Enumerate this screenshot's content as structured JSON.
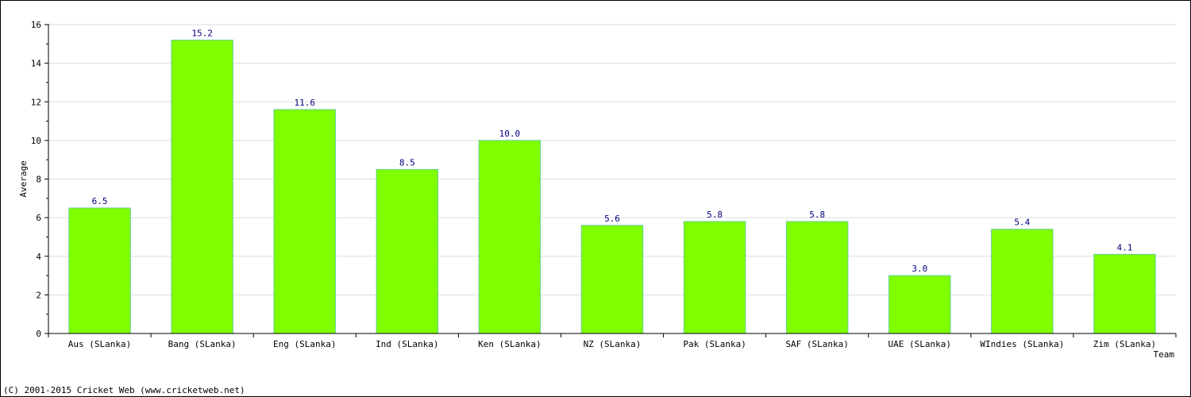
{
  "chart_data": {
    "type": "bar",
    "categories": [
      "Aus (SLanka)",
      "Bang (SLanka)",
      "Eng (SLanka)",
      "Ind (SLanka)",
      "Ken (SLanka)",
      "NZ (SLanka)",
      "Pak (SLanka)",
      "SAF (SLanka)",
      "UAE (SLanka)",
      "WIndies (SLanka)",
      "Zim (SLanka)"
    ],
    "values": [
      6.5,
      15.2,
      11.6,
      8.5,
      10.0,
      5.6,
      5.8,
      5.8,
      3.0,
      5.4,
      4.1
    ],
    "value_labels": [
      "6.5",
      "15.2",
      "11.6",
      "8.5",
      "10.0",
      "5.6",
      "5.8",
      "5.8",
      "3.0",
      "5.4",
      "4.1"
    ],
    "xlabel": "Team",
    "ylabel": "Average",
    "ylim": [
      0,
      16
    ],
    "yticks": [
      0,
      2,
      4,
      6,
      8,
      10,
      12,
      14,
      16
    ],
    "grid": true,
    "legend": "none",
    "colors": {
      "bar": "#80ff00",
      "bar_edge": "#66cc99",
      "value_label": "#000080",
      "grid": "#dddddd"
    }
  },
  "footer": "(C) 2001-2015 Cricket Web (www.cricketweb.net)"
}
